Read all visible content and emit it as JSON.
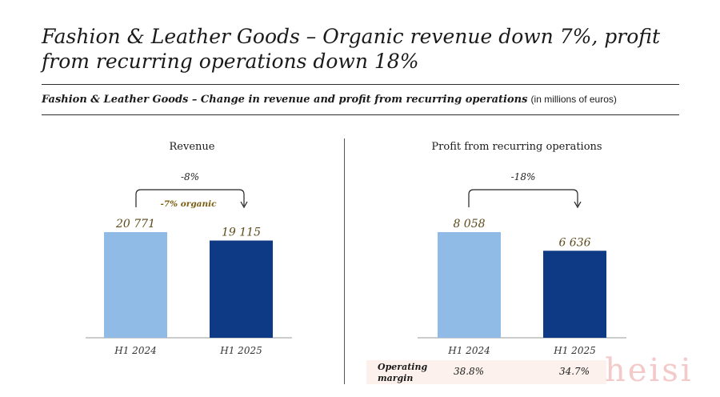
{
  "header": {
    "title": "Fashion & Leather Goods – Organic revenue down 7%, profit from recurring operations down 18%",
    "subtitle": "Fashion & Leather Goods – Change in revenue and profit from recurring operations",
    "unit": "(in millions of euros)"
  },
  "chart_data": [
    {
      "type": "bar",
      "title": "Revenue",
      "categories": [
        "H1 2024",
        "H1 2025"
      ],
      "values": [
        20771,
        19115
      ],
      "value_labels": [
        "20 771",
        "19 115"
      ],
      "colors": [
        "#8fbbe6",
        "#0e3a85"
      ],
      "annotations": {
        "change": "-8%",
        "organic": "-7% organic"
      }
    },
    {
      "type": "bar",
      "title": "Profit from recurring operations",
      "categories": [
        "H1 2024",
        "H1 2025"
      ],
      "values": [
        8058,
        6636
      ],
      "value_labels": [
        "8 058",
        "6 636"
      ],
      "colors": [
        "#8fbbe6",
        "#0e3a85"
      ],
      "annotations": {
        "change": "-18%"
      }
    }
  ],
  "margin": {
    "label_line1": "Operating",
    "label_line2": "margin",
    "values": [
      "38.8%",
      "34.7%"
    ],
    "background": "#fcf1ec"
  },
  "watermark": "heisi",
  "colors": {
    "light": "#8fbbe6",
    "dark": "#0e3a85",
    "value_text": "#5c4a1a",
    "organic_text": "#7a5d10"
  }
}
